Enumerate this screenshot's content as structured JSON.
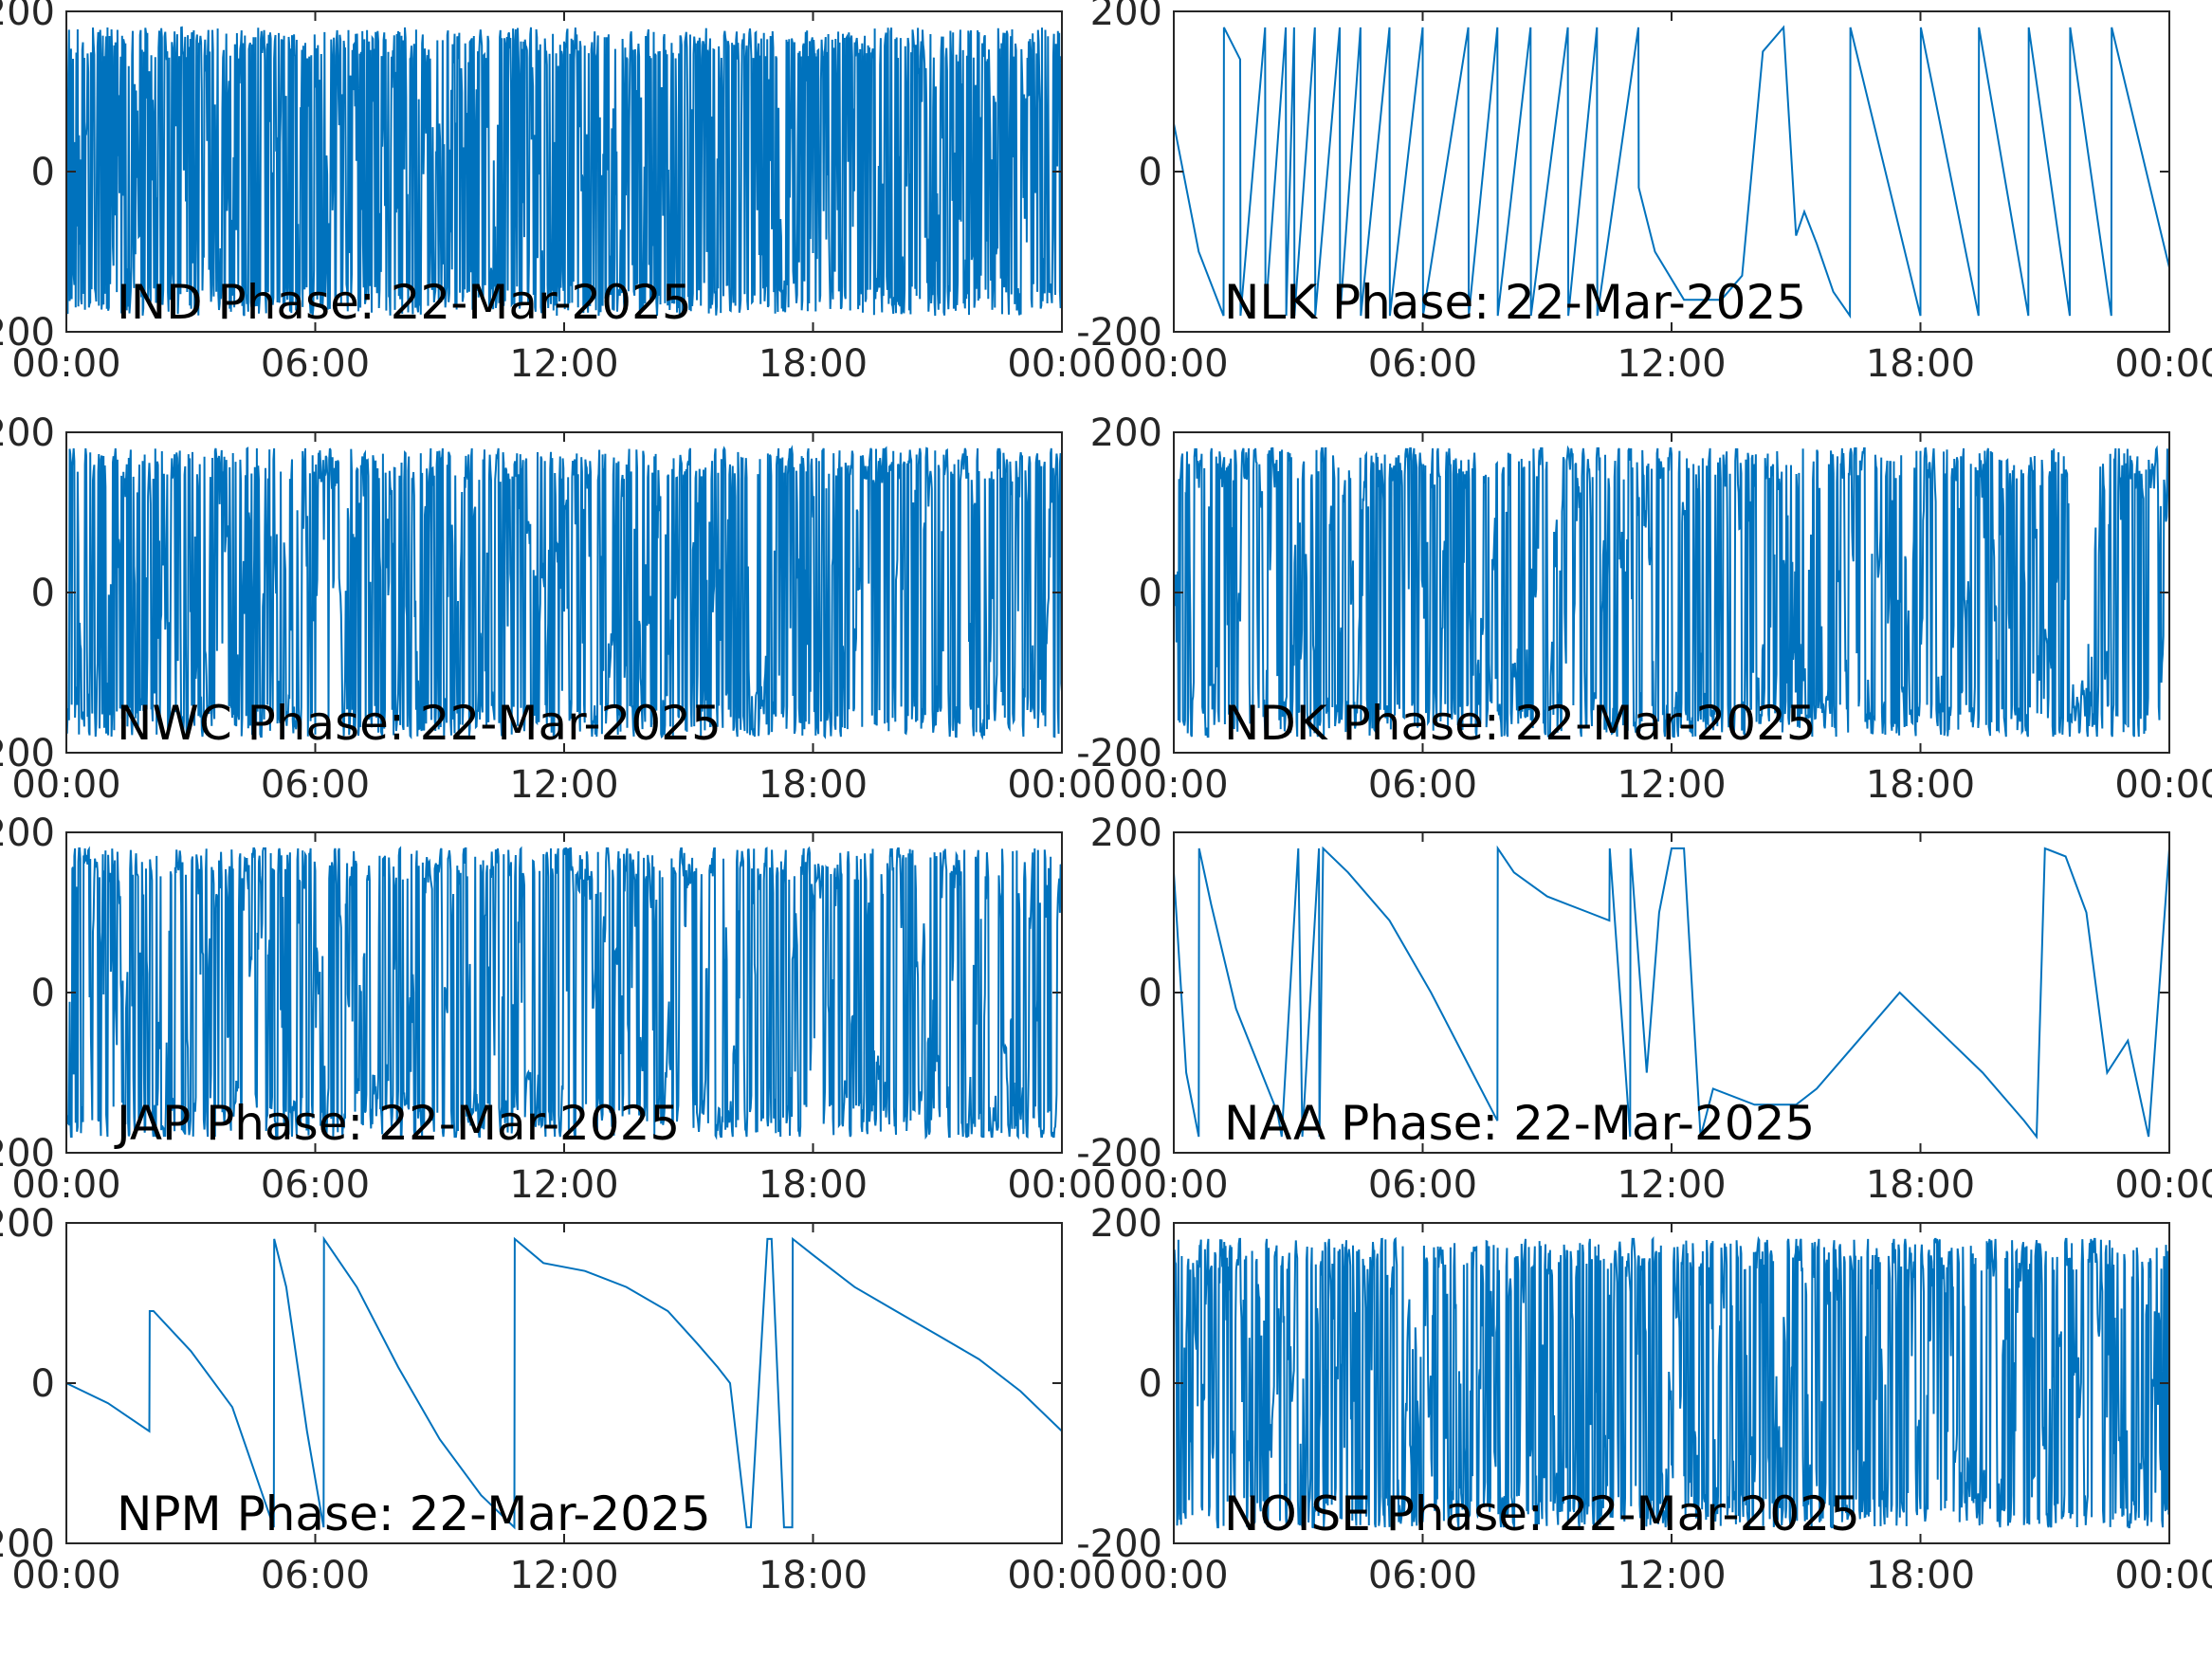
{
  "figure": {
    "line_color": "#0072BD",
    "axis_color": "#262626",
    "background": "#ffffff"
  },
  "chart_data": [
    {
      "type": "line",
      "id": "ind",
      "title": "IND Phase: 22-Mar-2025",
      "xlabel": "",
      "ylabel": "",
      "xlim": [
        "00:00",
        "00:00"
      ],
      "xticks": [
        "00:00",
        "06:00",
        "12:00",
        "18:00",
        "00:00"
      ],
      "ylim": [
        -200,
        200
      ],
      "yticks": [
        "-200",
        "0",
        "200"
      ],
      "legend": "none",
      "grid": false,
      "style": "noise",
      "noise_density": 0.97,
      "x_hours": [
        0,
        24
      ],
      "y": [
        0,
        0
      ]
    },
    {
      "type": "line",
      "id": "nlk",
      "title": "NLK Phase: 22-Mar-2025",
      "xlabel": "",
      "ylabel": "",
      "xlim": [
        "00:00",
        "00:00"
      ],
      "xticks": [
        "00:00",
        "06:00",
        "12:00",
        "18:00",
        "00:00"
      ],
      "ylim": [
        -200,
        200
      ],
      "yticks": [
        "-200",
        "0",
        "200"
      ],
      "legend": "none",
      "grid": false,
      "style": "wrapped",
      "x_hours": [
        0.0,
        0.6,
        1.2,
        1.21,
        1.6,
        1.61,
        2.2,
        2.21,
        2.7,
        2.71,
        2.9,
        2.91,
        3.4,
        3.41,
        4.0,
        4.01,
        4.5,
        4.51,
        5.2,
        5.21,
        6.0,
        6.01,
        7.1,
        7.11,
        7.8,
        7.81,
        8.6,
        8.61,
        9.5,
        9.51,
        10.2,
        10.21,
        11.2,
        11.21,
        11.6,
        12.3,
        13.2,
        13.7,
        14.2,
        14.7,
        15.0,
        15.2,
        15.5,
        15.9,
        16.3,
        16.31,
        18.0,
        18.01,
        19.4,
        19.41,
        20.6,
        20.61,
        21.6,
        21.61,
        22.6,
        22.61,
        24.0
      ],
      "y": [
        60,
        -100,
        -180,
        180,
        140,
        -180,
        180,
        -180,
        180,
        -180,
        180,
        -180,
        180,
        -180,
        180,
        -180,
        180,
        -180,
        180,
        -180,
        180,
        -180,
        180,
        -180,
        180,
        -180,
        180,
        -180,
        180,
        -180,
        180,
        -180,
        180,
        -20,
        -100,
        -160,
        -160,
        -130,
        150,
        180,
        -80,
        -50,
        -90,
        -150,
        -180,
        180,
        -180,
        180,
        -180,
        180,
        -180,
        180,
        -180,
        180,
        -180,
        180,
        -120
      ]
    },
    {
      "type": "line",
      "id": "nwc",
      "title": "NWC Phase: 22-Mar-2025",
      "xlabel": "",
      "ylabel": "",
      "xlim": [
        "00:00",
        "00:00"
      ],
      "xticks": [
        "00:00",
        "06:00",
        "12:00",
        "18:00",
        "00:00"
      ],
      "ylim": [
        -200,
        200
      ],
      "yticks": [
        "-200",
        "0",
        "200"
      ],
      "legend": "none",
      "grid": false,
      "style": "noise",
      "noise_density": 0.75,
      "x_hours": [
        0,
        24
      ],
      "y": [
        0,
        0
      ]
    },
    {
      "type": "line",
      "id": "ndk",
      "title": "NDK Phase: 22-Mar-2025",
      "xlabel": "",
      "ylabel": "",
      "xlim": [
        "00:00",
        "00:00"
      ],
      "xticks": [
        "00:00",
        "06:00",
        "12:00",
        "18:00",
        "00:00"
      ],
      "ylim": [
        -200,
        200
      ],
      "yticks": [
        "-200",
        "0",
        "200"
      ],
      "legend": "none",
      "grid": false,
      "style": "noise",
      "noise_density": 0.6,
      "x_hours": [
        0,
        24
      ],
      "y": [
        0,
        0
      ]
    },
    {
      "type": "line",
      "id": "jap",
      "title": "JAP Phase: 22-Mar-2025",
      "xlabel": "",
      "ylabel": "",
      "xlim": [
        "00:00",
        "00:00"
      ],
      "xticks": [
        "00:00",
        "06:00",
        "12:00",
        "18:00",
        "00:00"
      ],
      "ylim": [
        -200,
        200
      ],
      "yticks": [
        "-200",
        "0",
        "200"
      ],
      "legend": "none",
      "grid": false,
      "style": "noise",
      "noise_density": 0.55,
      "x_hours": [
        0,
        24
      ],
      "y": [
        0,
        0
      ]
    },
    {
      "type": "line",
      "id": "naa",
      "title": "NAA Phase: 22-Mar-2025",
      "xlabel": "",
      "ylabel": "",
      "xlim": [
        "00:00",
        "00:00"
      ],
      "xticks": [
        "00:00",
        "06:00",
        "12:00",
        "18:00",
        "00:00"
      ],
      "ylim": [
        -200,
        200
      ],
      "yticks": [
        "-200",
        "0",
        "200"
      ],
      "legend": "none",
      "grid": false,
      "style": "wrapped",
      "x_hours": [
        0.0,
        0.3,
        0.6,
        0.61,
        0.9,
        1.5,
        2.5,
        2.6,
        3.0,
        3.1,
        3.5,
        3.51,
        3.6,
        4.2,
        5.2,
        6.2,
        7.2,
        7.8,
        7.81,
        8.2,
        9.0,
        10.0,
        10.5,
        10.51,
        11.0,
        11.01,
        11.4,
        11.7,
        12.0,
        12.3,
        12.7,
        13.0,
        14.0,
        15.0,
        15.5,
        16.5,
        17.5,
        18.5,
        19.5,
        20.5,
        20.8,
        21.0,
        21.5,
        22.0,
        22.5,
        23.0,
        23.5,
        24.0
      ],
      "y": [
        150,
        -100,
        -180,
        180,
        110,
        -20,
        -150,
        -180,
        180,
        -180,
        180,
        -180,
        180,
        150,
        90,
        0,
        -100,
        -160,
        180,
        150,
        120,
        100,
        90,
        180,
        -180,
        180,
        -100,
        100,
        180,
        180,
        -180,
        -120,
        -140,
        -140,
        -120,
        -60,
        0,
        -50,
        -100,
        -160,
        -180,
        180,
        170,
        100,
        -100,
        -60,
        -180,
        180
      ]
    },
    {
      "type": "line",
      "id": "npm",
      "title": "NPM Phase: 22-Mar-2025",
      "xlabel": "",
      "ylabel": "",
      "xlim": [
        "00:00",
        "00:00"
      ],
      "xticks": [
        "00:00",
        "06:00",
        "12:00",
        "18:00",
        "00:00"
      ],
      "ylim": [
        -200,
        200
      ],
      "yticks": [
        "-200",
        "0",
        "200"
      ],
      "legend": "none",
      "grid": false,
      "style": "wrapped",
      "x_hours": [
        0.0,
        1.0,
        2.0,
        2.01,
        2.1,
        3.0,
        4.0,
        4.8,
        5.0,
        5.01,
        5.3,
        5.8,
        6.2,
        6.21,
        7.0,
        8.0,
        9.0,
        10.0,
        10.8,
        10.81,
        11.5,
        12.5,
        13.5,
        14.5,
        15.2,
        15.7,
        16.0,
        16.4,
        16.5,
        16.9,
        17.0,
        17.3,
        17.5,
        17.51,
        18.0,
        19.0,
        20.0,
        21.0,
        22.0,
        23.0,
        24.0
      ],
      "y": [
        0,
        -25,
        -60,
        90,
        90,
        40,
        -30,
        -150,
        -180,
        180,
        120,
        -60,
        -180,
        180,
        120,
        20,
        -70,
        -140,
        -180,
        180,
        150,
        140,
        120,
        90,
        50,
        20,
        0,
        -180,
        -180,
        180,
        180,
        -180,
        -180,
        180,
        160,
        120,
        90,
        60,
        30,
        -10,
        -60
      ]
    },
    {
      "type": "line",
      "id": "noise",
      "title": "NOISE Phase: 22-Mar-2025",
      "xlabel": "",
      "ylabel": "",
      "xlim": [
        "00:00",
        "00:00"
      ],
      "xticks": [
        "00:00",
        "06:00",
        "12:00",
        "18:00",
        "00:00"
      ],
      "ylim": [
        -200,
        200
      ],
      "yticks": [
        "-200",
        "0",
        "200"
      ],
      "legend": "none",
      "grid": false,
      "style": "noise",
      "noise_density": 0.7,
      "x_hours": [
        0,
        24
      ],
      "y": [
        0,
        0
      ]
    }
  ]
}
